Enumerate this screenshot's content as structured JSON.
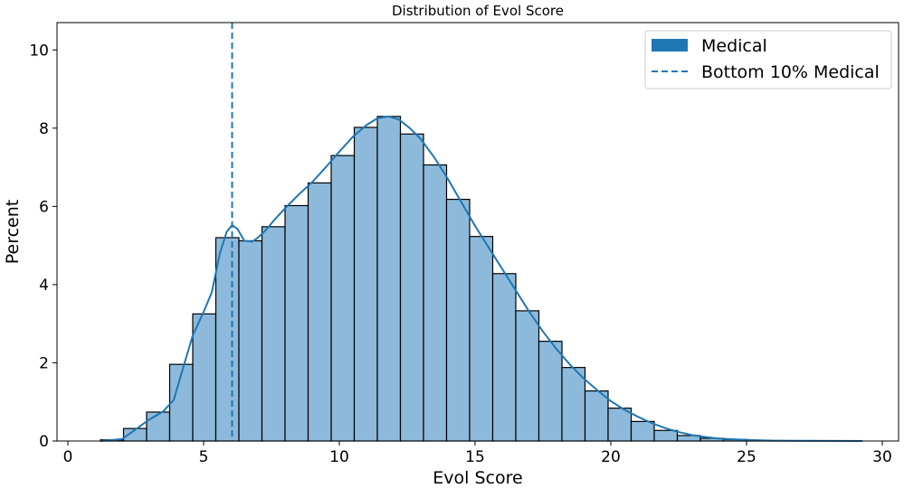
{
  "chart_data": {
    "type": "bar",
    "title": "Distribution of Evol Score",
    "xlabel": "Evol Score",
    "ylabel": "Percent",
    "xlim": [
      -0.4,
      30.6
    ],
    "ylim": [
      0,
      10.7
    ],
    "xticks": [
      0,
      5,
      10,
      15,
      20,
      25,
      30
    ],
    "yticks": [
      0,
      2,
      4,
      6,
      8,
      10
    ],
    "bin_edges": [
      1.2,
      2.05,
      2.9,
      3.75,
      4.6,
      5.45,
      6.3,
      7.15,
      8.0,
      8.85,
      9.7,
      10.55,
      11.4,
      12.25,
      13.1,
      13.95,
      14.8,
      15.65,
      16.5,
      17.35,
      18.2,
      19.05,
      19.9,
      20.75,
      21.6,
      22.45,
      23.3,
      24.15,
      25.0,
      25.85,
      26.7,
      27.55,
      28.4,
      29.25
    ],
    "values": [
      0.03,
      0.32,
      0.74,
      1.96,
      3.25,
      5.2,
      5.12,
      5.48,
      6.02,
      6.6,
      7.3,
      8.02,
      8.3,
      7.85,
      7.06,
      6.18,
      5.23,
      4.28,
      3.33,
      2.55,
      1.88,
      1.28,
      0.84,
      0.5,
      0.27,
      0.14,
      0.07,
      0.04,
      0.02,
      0.01,
      0.01,
      0.01,
      0.01
    ],
    "kde": {
      "x": [
        1.2,
        2.0,
        2.5,
        3.0,
        3.5,
        3.9,
        4.3,
        4.6,
        5.0,
        5.3,
        5.6,
        5.85,
        6.05,
        6.25,
        6.5,
        6.8,
        7.0,
        7.3,
        7.6,
        8.0,
        8.5,
        9.0,
        9.5,
        10.0,
        10.5,
        11.0,
        11.4,
        11.8,
        12.2,
        12.6,
        13.0,
        13.5,
        14.0,
        14.5,
        15.0,
        15.5,
        16.0,
        16.5,
        17.0,
        17.5,
        18.0,
        18.5,
        19.0,
        19.5,
        20.0,
        20.5,
        21.0,
        21.5,
        22.0,
        22.5,
        23.0,
        23.5,
        24.0,
        25.0,
        26.0,
        27.0,
        28.0,
        29.25
      ],
      "y": [
        0.0,
        0.05,
        0.3,
        0.55,
        0.75,
        1.05,
        2.0,
        2.7,
        3.3,
        3.8,
        4.8,
        5.35,
        5.52,
        5.42,
        5.12,
        5.1,
        5.2,
        5.4,
        5.65,
        5.95,
        6.3,
        6.62,
        7.0,
        7.4,
        7.78,
        8.08,
        8.25,
        8.3,
        8.22,
        8.0,
        7.72,
        7.25,
        6.7,
        6.1,
        5.5,
        4.95,
        4.4,
        3.85,
        3.3,
        2.8,
        2.35,
        1.95,
        1.6,
        1.3,
        1.02,
        0.8,
        0.62,
        0.46,
        0.33,
        0.23,
        0.15,
        0.1,
        0.06,
        0.03,
        0.01,
        0.005,
        0.002,
        0.0
      ]
    },
    "threshold_line": {
      "x": 6.05,
      "label": "Bottom 10% Medical"
    },
    "legend": {
      "placement": "top-right",
      "entries": [
        {
          "label": "Medical",
          "kind": "patch"
        },
        {
          "label": "Bottom 10% Medical",
          "kind": "dashed-line"
        }
      ]
    },
    "colors": {
      "bar_fill": "#8dbadb",
      "bar_edge": "#000000",
      "line": "#1f77b4",
      "legend_patch": "#1f77b4"
    }
  }
}
